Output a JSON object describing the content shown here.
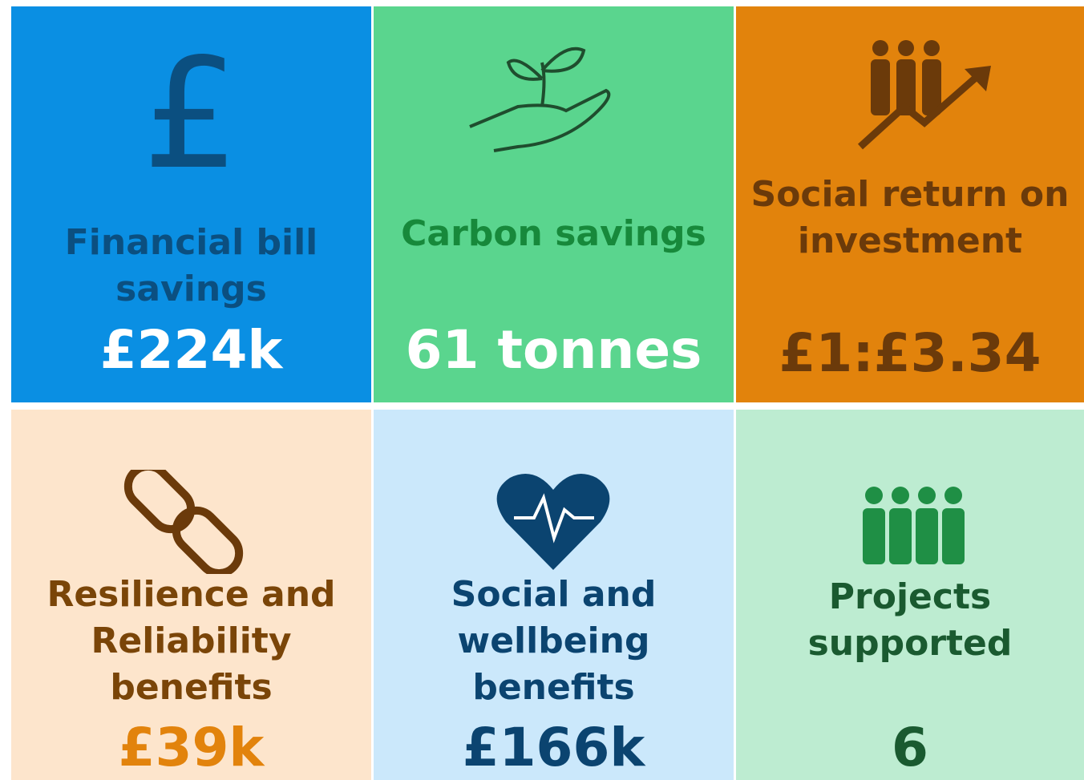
{
  "tiles": [
    {
      "label": "Financial bill savings",
      "value": "£224k"
    },
    {
      "label": "Carbon savings",
      "value": "61 tonnes"
    },
    {
      "label": "Social return on investment",
      "value": "£1:£3.34"
    },
    {
      "label": "Resilience and Reliability benefits",
      "value": "£39k"
    },
    {
      "label": "Social and wellbeing benefits",
      "value": "£166k"
    },
    {
      "label": "Projects supported",
      "value": "6"
    }
  ]
}
